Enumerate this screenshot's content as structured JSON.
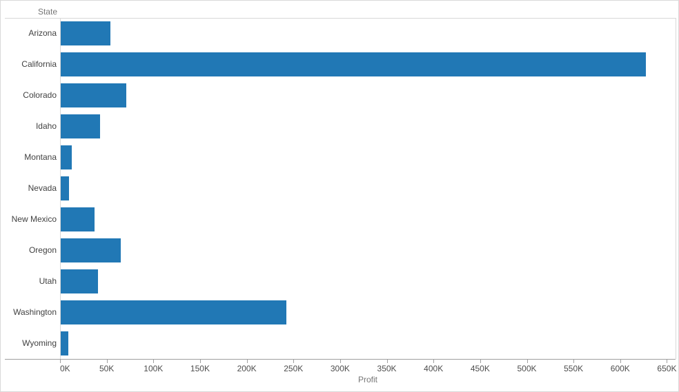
{
  "chart_data": {
    "type": "bar",
    "orientation": "horizontal",
    "title": "",
    "row_header": "State",
    "xlabel": "Profit",
    "categories": [
      "Arizona",
      "California",
      "Colorado",
      "Idaho",
      "Montana",
      "Nevada",
      "New Mexico",
      "Oregon",
      "Utah",
      "Washington",
      "Wyoming"
    ],
    "values": [
      53000,
      627000,
      70000,
      42000,
      12000,
      9000,
      36000,
      64000,
      40000,
      242000,
      8000
    ],
    "x_ticks": [
      "0K",
      "50K",
      "100K",
      "150K",
      "200K",
      "250K",
      "300K",
      "350K",
      "400K",
      "450K",
      "500K",
      "550K",
      "600K",
      "650K"
    ],
    "tick_interval": 50000,
    "xlim": [
      0,
      659000
    ],
    "grid": false,
    "legend": "none",
    "bar_color": "#2178b5",
    "colors": {
      "bar": "#2178b5",
      "row_label": "#414141",
      "tick_label": "#4c4c4c",
      "header_label": "#757575",
      "gridline": "#d8d8d8",
      "axis_line": "#9e9e9e",
      "border": "#d9d9d9"
    }
  }
}
